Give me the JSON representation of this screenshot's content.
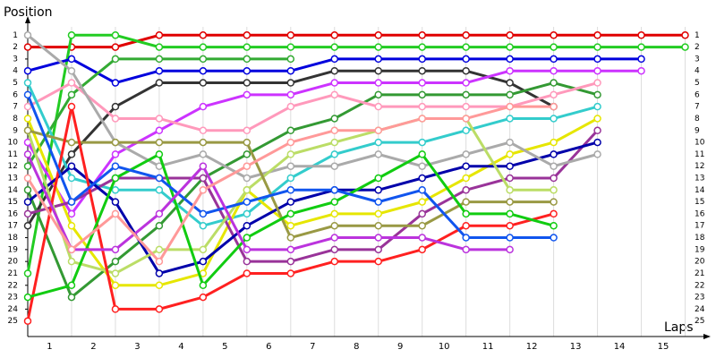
{
  "chart_data": {
    "type": "line",
    "ylabel": "Position",
    "xlabel": "Laps",
    "x": [
      0,
      1,
      2,
      3,
      4,
      5,
      6,
      7,
      8,
      9,
      10,
      11,
      12,
      13,
      14,
      15
    ],
    "xlim": [
      0,
      15.5
    ],
    "xticks": [
      {
        "value": 0.5,
        "label": "1"
      },
      {
        "value": 1.5,
        "label": "2"
      },
      {
        "value": 2.5,
        "label": "3"
      },
      {
        "value": 3.5,
        "label": "4"
      },
      {
        "value": 4.5,
        "label": "5"
      },
      {
        "value": 5.5,
        "label": "6"
      },
      {
        "value": 6.5,
        "label": "7"
      },
      {
        "value": 7.5,
        "label": "8"
      },
      {
        "value": 8.5,
        "label": "9"
      },
      {
        "value": 9.5,
        "label": "10"
      },
      {
        "value": 10.5,
        "label": "11"
      },
      {
        "value": 11.5,
        "label": "12"
      },
      {
        "value": 12.5,
        "label": "13"
      },
      {
        "value": 13.5,
        "label": "14"
      },
      {
        "value": 14.5,
        "label": "15"
      }
    ],
    "ylim": [
      26,
      0
    ],
    "yticks": [
      1,
      2,
      3,
      4,
      5,
      6,
      7,
      8,
      9,
      10,
      11,
      12,
      13,
      14,
      15,
      16,
      17,
      18,
      19,
      20,
      21,
      22,
      23,
      24,
      25
    ],
    "grid": true,
    "series": [
      {
        "color": "#e00000",
        "values": [
          2,
          2,
          2,
          1,
          1,
          1,
          1,
          1,
          1,
          1,
          1,
          1,
          1,
          1,
          1,
          1
        ]
      },
      {
        "color": "#22cc22",
        "values": [
          21,
          1,
          1,
          2,
          2,
          2,
          2,
          2,
          2,
          2,
          2,
          2,
          2,
          2,
          2,
          2
        ]
      },
      {
        "color": "#0000dd",
        "values": [
          4,
          3,
          5,
          4,
          4,
          4,
          4,
          3,
          3,
          3,
          3,
          3,
          3,
          3,
          3,
          null
        ]
      },
      {
        "color": "#333333",
        "values": [
          17,
          11,
          7,
          5,
          5,
          5,
          5,
          4,
          4,
          4,
          4,
          5,
          7,
          null,
          null,
          null
        ]
      },
      {
        "color": "#cc33ff",
        "values": [
          10,
          16,
          11,
          9,
          7,
          6,
          6,
          5,
          5,
          5,
          5,
          4,
          4,
          4,
          4,
          null
        ]
      },
      {
        "color": "#33aa33",
        "values": [
          12,
          6,
          3,
          3,
          3,
          3,
          3,
          null,
          null,
          null,
          null,
          null,
          null,
          null,
          null,
          null
        ]
      },
      {
        "color": "#339933",
        "values": [
          14,
          23,
          20,
          17,
          13,
          11,
          9,
          8,
          6,
          6,
          6,
          6,
          5,
          6,
          null,
          null
        ]
      },
      {
        "color": "#ff99bb",
        "values": [
          7,
          5,
          8,
          8,
          9,
          9,
          7,
          6,
          7,
          7,
          7,
          7,
          6,
          5,
          null,
          null
        ]
      },
      {
        "color": "#33cccc",
        "values": [
          5,
          13,
          14,
          14,
          17,
          16,
          13,
          11,
          10,
          10,
          9,
          8,
          8,
          7,
          null,
          null
        ]
      },
      {
        "color": "#e6e600",
        "values": [
          8,
          17,
          22,
          22,
          21,
          14,
          17,
          16,
          16,
          15,
          13,
          11,
          10,
          8,
          null,
          null
        ]
      },
      {
        "color": "#993399",
        "values": [
          16,
          15,
          13,
          13,
          13,
          20,
          20,
          19,
          19,
          16,
          14,
          13,
          13,
          9,
          null,
          null
        ]
      },
      {
        "color": "#0000aa",
        "values": [
          15,
          12,
          15,
          21,
          20,
          17,
          15,
          14,
          14,
          13,
          12,
          12,
          11,
          10,
          null,
          null
        ]
      },
      {
        "color": "#aaaaaa",
        "values": [
          1,
          4,
          10,
          12,
          11,
          13,
          12,
          12,
          11,
          12,
          11,
          10,
          12,
          11,
          null,
          null
        ]
      },
      {
        "color": "#bbdd66",
        "values": [
          9,
          20,
          21,
          19,
          19,
          14,
          11,
          10,
          9,
          8,
          8,
          14,
          14,
          null,
          null,
          null
        ]
      },
      {
        "color": "#999944",
        "values": [
          9,
          10,
          10,
          10,
          10,
          10,
          18,
          17,
          17,
          17,
          15,
          15,
          15,
          null,
          null,
          null
        ]
      },
      {
        "color": "#ff2020",
        "values": [
          25,
          7,
          24,
          24,
          23,
          21,
          21,
          20,
          20,
          19,
          17,
          17,
          16,
          null,
          null,
          null
        ]
      },
      {
        "color": "#11cc11",
        "values": [
          23,
          22,
          13,
          11,
          22,
          18,
          16,
          15,
          13,
          11,
          16,
          16,
          17,
          null,
          null,
          null
        ]
      },
      {
        "color": "#1155ee",
        "values": [
          6,
          15,
          12,
          13,
          16,
          15,
          14,
          14,
          15,
          14,
          18,
          18,
          18,
          null,
          null,
          null
        ]
      },
      {
        "color": "#bb33dd",
        "values": [
          11,
          19,
          19,
          16,
          12,
          19,
          19,
          18,
          18,
          18,
          19,
          19,
          null,
          null,
          null,
          null
        ]
      },
      {
        "color": "#ff9999",
        "values": [
          13,
          19,
          16,
          20,
          14,
          12,
          10,
          9,
          9,
          8,
          8,
          7,
          7,
          null,
          null,
          null
        ]
      }
    ]
  }
}
